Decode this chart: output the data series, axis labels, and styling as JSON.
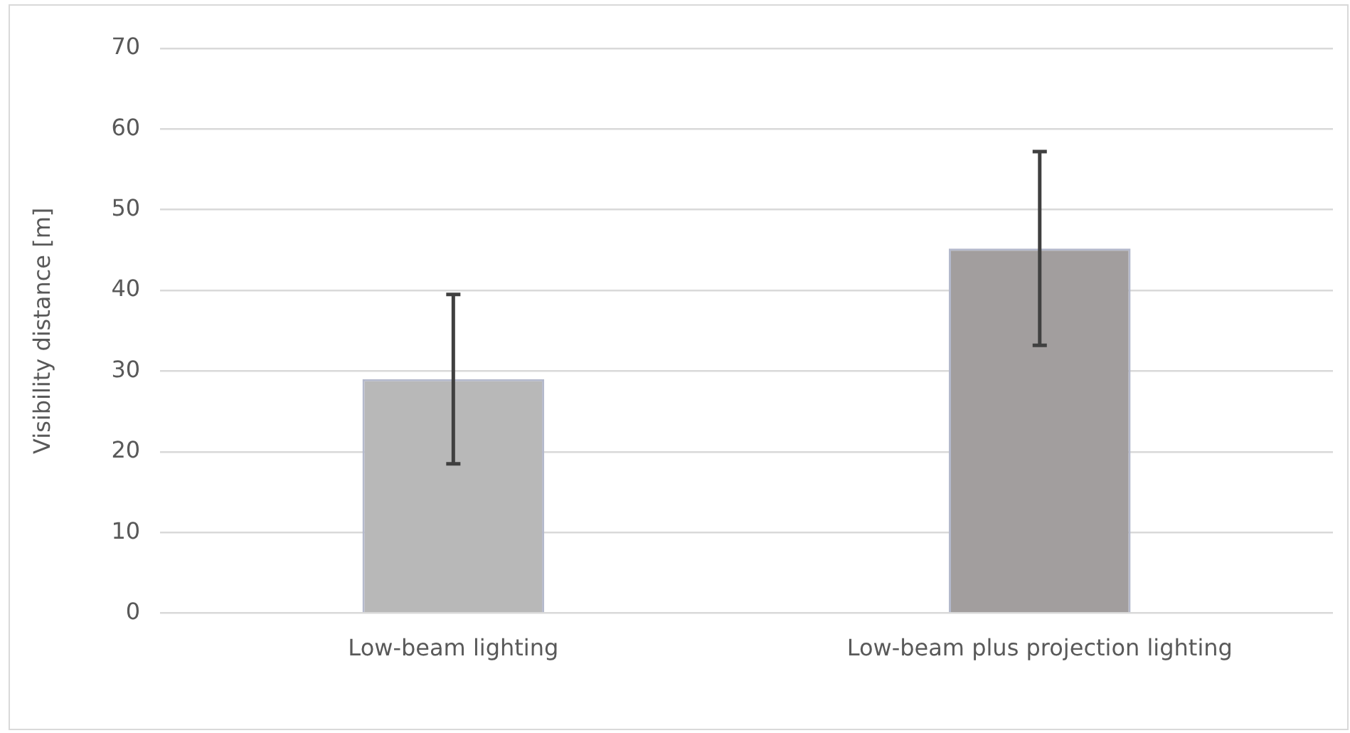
{
  "chart_data": {
    "type": "bar",
    "ylabel": "Visibility distance [m]",
    "categories": [
      "Low-beam lighting",
      "Low-beam plus projection lighting"
    ],
    "values": [
      29,
      45.2
    ],
    "colors": [
      "#b8b8b8",
      "#a29e9e"
    ],
    "errors": [
      10.5,
      12
    ],
    "ylim": [
      0,
      70
    ],
    "yticks": [
      0,
      10,
      20,
      30,
      40,
      50,
      60,
      70
    ],
    "grid": "y",
    "legend": false
  }
}
